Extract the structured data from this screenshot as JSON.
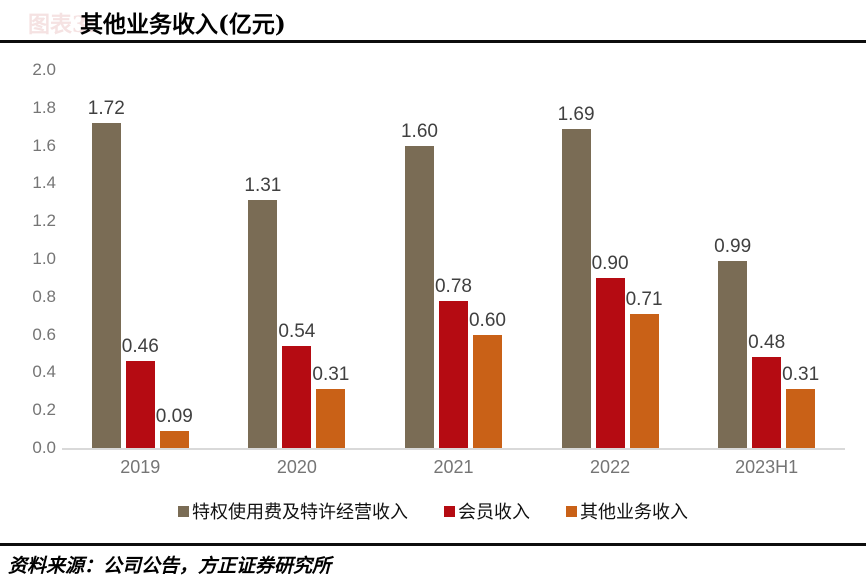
{
  "header": {
    "figure_prefix": "图表3:",
    "title": "其他业务收入(亿元)"
  },
  "footer": {
    "source_note": "资料来源：公司公告，方正证券研究所"
  },
  "colors": {
    "series_royalty": "#7a6c55",
    "series_member": "#b50b12",
    "series_other": "#c96117",
    "axis_label": "#757575",
    "data_label": "#404040",
    "baseline": "#d9d9d9",
    "rule": "#0d0d0d",
    "faint_prefix": "#f5e2e2"
  },
  "chart_data": {
    "type": "bar",
    "title": "其他业务收入(亿元)",
    "categories": [
      "2019",
      "2020",
      "2021",
      "2022",
      "2023H1"
    ],
    "series": [
      {
        "name": "特权使用费及特许经营收入",
        "color": "#7a6c55",
        "values": [
          1.72,
          1.31,
          1.6,
          1.69,
          0.99
        ]
      },
      {
        "name": "会员收入",
        "color": "#b50b12",
        "values": [
          0.46,
          0.54,
          0.78,
          0.9,
          0.48
        ]
      },
      {
        "name": "其他业务收入",
        "color": "#c96117",
        "values": [
          0.09,
          0.31,
          0.6,
          0.71,
          0.31
        ]
      }
    ],
    "ylim": [
      0,
      2.0
    ],
    "ytick_step": 0.2,
    "yticks": [
      "2.0",
      "1.8",
      "1.6",
      "1.4",
      "1.2",
      "1.0",
      "0.8",
      "0.6",
      "0.4",
      "0.2",
      "0.0"
    ],
    "grid": false,
    "legend_position": "bottom",
    "value_labels": "outside-end, 2 decimals"
  }
}
